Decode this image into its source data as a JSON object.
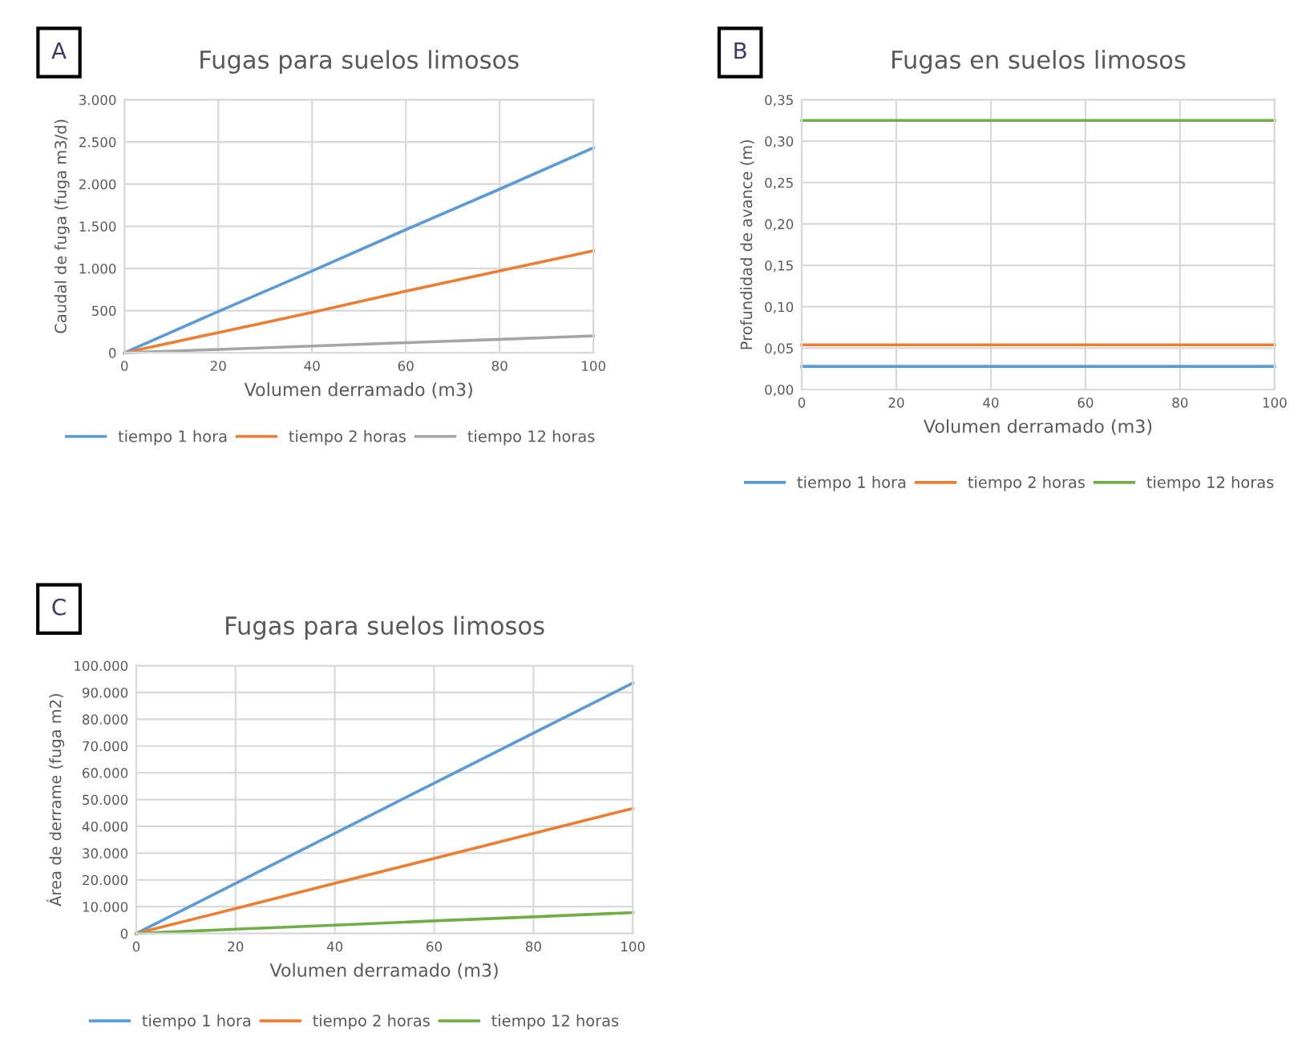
{
  "chart_data": [
    {
      "type": "line",
      "title": "Fugas para suelos limosos",
      "xlabel": "Volumen derramado (m3)",
      "ylabel": "Caudal de fuga (fuga m3/d)",
      "annotations": [
        "A"
      ],
      "x": [
        0,
        20,
        40,
        60,
        80,
        100
      ],
      "xlim": [
        0,
        100
      ],
      "xticks": [
        0,
        20,
        40,
        60,
        80,
        100
      ],
      "ylim": [
        0,
        3000
      ],
      "yticks": [
        0,
        {
          "value": 500,
          "label": "500"
        },
        {
          "value": 1000,
          "label": "1.000"
        },
        {
          "value": 1500,
          "label": "1.500"
        },
        {
          "value": 2000,
          "label": "2.000"
        },
        {
          "value": 2500,
          "label": "2.500"
        },
        {
          "value": 3000,
          "label": "3.000"
        }
      ],
      "grid": true,
      "legend": "bottom",
      "marker": "none",
      "series": [
        {
          "name": "tiempo 1 hora",
          "color": "#5b9bd5",
          "values": [
            0,
            490,
            970,
            1460,
            1940,
            2430
          ]
        },
        {
          "name": "tiempo 2 horas",
          "color": "#ed7d31",
          "values": [
            0,
            240,
            480,
            730,
            970,
            1210
          ]
        },
        {
          "name": "tiempo 12 horas",
          "color": "#a5a5a5",
          "values": [
            0,
            40,
            80,
            120,
            160,
            200
          ]
        }
      ]
    },
    {
      "type": "line",
      "title": "Fugas en suelos limosos",
      "xlabel": "Volumen derramado (m3)",
      "ylabel": "Profundidad de avance (m)",
      "annotations": [
        "B"
      ],
      "x": [
        0,
        20,
        40,
        60,
        80,
        100
      ],
      "xlim": [
        0,
        100
      ],
      "xticks": [
        0,
        20,
        40,
        60,
        80,
        100
      ],
      "ylim": [
        0,
        0.35
      ],
      "yticks": [
        {
          "value": 0,
          "label": "0,00"
        },
        {
          "value": 0.05,
          "label": "0,05"
        },
        {
          "value": 0.1,
          "label": "0,10"
        },
        {
          "value": 0.15,
          "label": "0,15"
        },
        {
          "value": 0.2,
          "label": "0,20"
        },
        {
          "value": 0.25,
          "label": "0,25"
        },
        {
          "value": 0.3,
          "label": "0,30"
        },
        {
          "value": 0.35,
          "label": "0,35"
        }
      ],
      "grid": true,
      "legend": "bottom",
      "marker": "none",
      "series": [
        {
          "name": "tiempo 1 hora",
          "color": "#5b9bd5",
          "values": [
            0.028,
            0.028,
            0.028,
            0.028,
            0.028,
            0.028
          ]
        },
        {
          "name": "tiempo 2 horas",
          "color": "#ed7d31",
          "values": [
            0.054,
            0.054,
            0.054,
            0.054,
            0.054,
            0.054
          ]
        },
        {
          "name": "tiempo 12 horas",
          "color": "#70ad47",
          "values": [
            0.325,
            0.325,
            0.325,
            0.325,
            0.325,
            0.325
          ]
        }
      ]
    },
    {
      "type": "line",
      "title": "Fugas para suelos limosos",
      "xlabel": "Volumen derramado (m3)",
      "ylabel": "Área de derrame (fuga m2)",
      "annotations": [
        "C"
      ],
      "x": [
        0,
        20,
        40,
        60,
        80,
        100
      ],
      "xlim": [
        0,
        100
      ],
      "xticks": [
        0,
        20,
        40,
        60,
        80,
        100
      ],
      "ylim": [
        0,
        100000
      ],
      "yticks": [
        0,
        {
          "value": 10000,
          "label": "10.000"
        },
        {
          "value": 20000,
          "label": "20.000"
        },
        {
          "value": 30000,
          "label": "30.000"
        },
        {
          "value": 40000,
          "label": "40.000"
        },
        {
          "value": 50000,
          "label": "50.000"
        },
        {
          "value": 60000,
          "label": "60.000"
        },
        {
          "value": 70000,
          "label": "70.000"
        },
        {
          "value": 80000,
          "label": "80.000"
        },
        {
          "value": 90000,
          "label": "90.000"
        },
        {
          "value": 100000,
          "label": "100.000"
        }
      ],
      "grid": true,
      "legend": "bottom",
      "marker": "none",
      "series": [
        {
          "name": "tiempo 1 hora",
          "color": "#5b9bd5",
          "values": [
            0,
            18700,
            37400,
            56100,
            74800,
            93500
          ]
        },
        {
          "name": "tiempo 2 horas",
          "color": "#ed7d31",
          "values": [
            0,
            9300,
            18700,
            28000,
            37400,
            46700
          ]
        },
        {
          "name": "tiempo 12 horas",
          "color": "#70ad47",
          "values": [
            0,
            1600,
            3100,
            4700,
            6200,
            7800
          ]
        }
      ]
    }
  ]
}
